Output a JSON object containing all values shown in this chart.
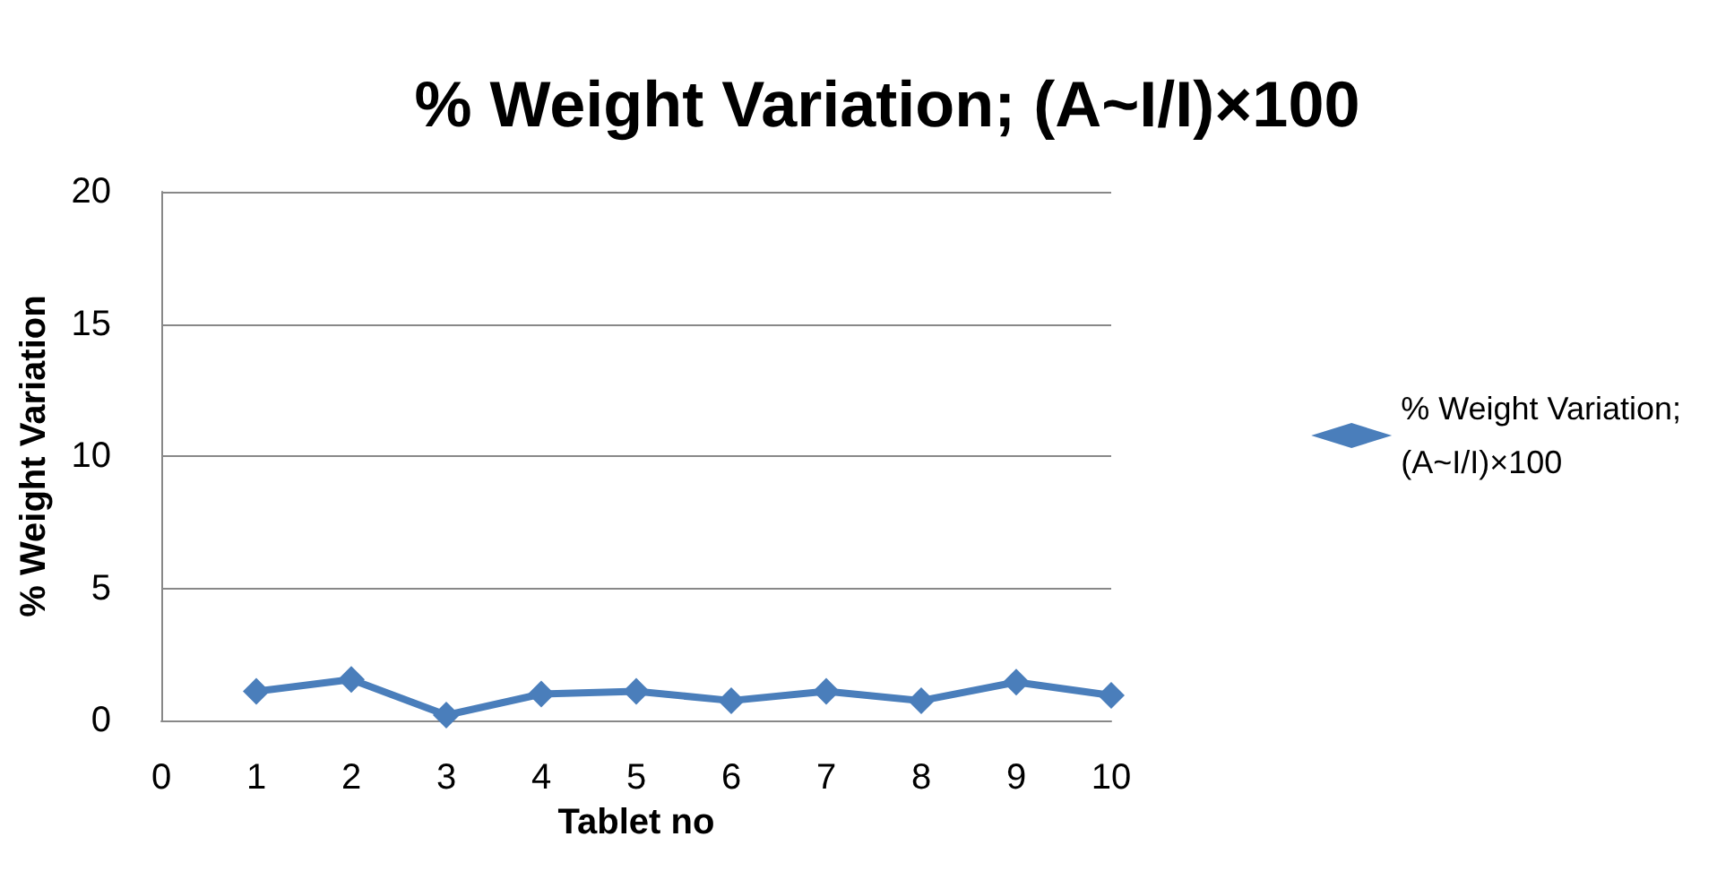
{
  "chart_data": {
    "type": "line",
    "title": "% Weight Variation; (A~I/I)×100",
    "xlabel": "Tablet no",
    "ylabel": "% Weight Variation",
    "x": [
      1,
      2,
      3,
      4,
      5,
      6,
      7,
      8,
      9,
      10
    ],
    "series": [
      {
        "name": "% Weight Variation; (A~I/I)×100",
        "color": "#4a7ebb",
        "values": [
          1.1,
          1.55,
          0.2,
          1.0,
          1.1,
          0.75,
          1.1,
          0.75,
          1.45,
          0.95
        ]
      }
    ],
    "xlim": [
      0,
      10
    ],
    "xticks": [
      0,
      1,
      2,
      3,
      4,
      5,
      6,
      7,
      8,
      9,
      10
    ],
    "ylim": [
      0,
      20
    ],
    "yticks": [
      0,
      5,
      10,
      15,
      20
    ],
    "grid": "y",
    "legend": "right",
    "marker": "diamond",
    "line_style": "solid"
  }
}
